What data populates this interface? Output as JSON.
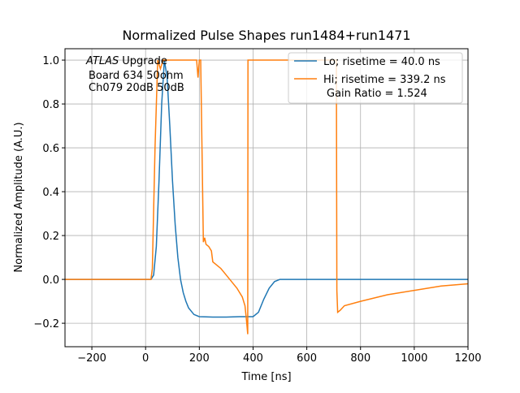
{
  "chart_data": {
    "type": "line",
    "title": "Normalized Pulse Shapes run1484+run1471",
    "xlabel": "Time [ns]",
    "ylabel": "Normalized Amplitude (A.U.)",
    "annotation": {
      "italic": "ATLAS",
      "lines": [
        "Upgrade",
        "Board 634 50ohm",
        "Ch079 20dB 50dB"
      ]
    },
    "legend_note": "Gain Ratio = 1.524",
    "legend": "upper right",
    "grid": true,
    "xlim": [
      -300,
      1200
    ],
    "ylim": [
      -0.307,
      1.052
    ],
    "xticks": [
      {
        "value": -200,
        "label": "−200"
      },
      0,
      200,
      400,
      600,
      800,
      1000,
      1200
    ],
    "yticks": [
      {
        "value": -0.2,
        "label": "−0.2"
      },
      {
        "value": 0,
        "label": "0.0"
      },
      {
        "value": 0.2,
        "label": "0.2"
      },
      {
        "value": 0.4,
        "label": "0.4"
      },
      {
        "value": 0.6,
        "label": "0.6"
      },
      {
        "value": 0.8,
        "label": "0.8"
      },
      {
        "value": 1.0,
        "label": "1.0"
      }
    ],
    "series": [
      {
        "name": "Lo; risetime = 40.0 ns",
        "color": "#1f77b4",
        "x": [
          -300,
          20,
          30,
          40,
          50,
          60,
          70,
          80,
          90,
          100,
          110,
          120,
          130,
          140,
          150,
          160,
          180,
          200,
          250,
          300,
          350,
          400,
          420,
          440,
          460,
          480,
          500,
          550,
          600,
          1200
        ],
        "values": [
          0,
          0,
          0.02,
          0.15,
          0.45,
          0.8,
          1.0,
          0.92,
          0.7,
          0.45,
          0.25,
          0.1,
          0.0,
          -0.06,
          -0.1,
          -0.13,
          -0.16,
          -0.17,
          -0.172,
          -0.172,
          -0.17,
          -0.17,
          -0.15,
          -0.09,
          -0.04,
          -0.01,
          0,
          0,
          0,
          0
        ]
      },
      {
        "name": "Hi; risetime = 339.2 ns",
        "color": "#ff7f0e",
        "x": [
          -300,
          20,
          25,
          35,
          45,
          55,
          65,
          80,
          190,
          195,
          200,
          205,
          210,
          215,
          220,
          225,
          235,
          245,
          250,
          260,
          270,
          280,
          300,
          320,
          340,
          360,
          370,
          375,
          378,
          380,
          381,
          385,
          710,
          712,
          715,
          725,
          740,
          800,
          900,
          1000,
          1100,
          1200
        ],
        "values": [
          0,
          0,
          0.05,
          0.6,
          1.0,
          0.96,
          1.0,
          1.0,
          1.0,
          0.92,
          1.0,
          1.0,
          0.6,
          0.17,
          0.19,
          0.16,
          0.15,
          0.13,
          0.08,
          0.07,
          0.06,
          0.05,
          0.02,
          -0.01,
          -0.04,
          -0.08,
          -0.12,
          -0.18,
          -0.22,
          -0.25,
          1.0,
          1.0,
          1.0,
          -0.05,
          -0.15,
          -0.14,
          -0.12,
          -0.1,
          -0.07,
          -0.05,
          -0.03,
          -0.02
        ]
      }
    ]
  }
}
